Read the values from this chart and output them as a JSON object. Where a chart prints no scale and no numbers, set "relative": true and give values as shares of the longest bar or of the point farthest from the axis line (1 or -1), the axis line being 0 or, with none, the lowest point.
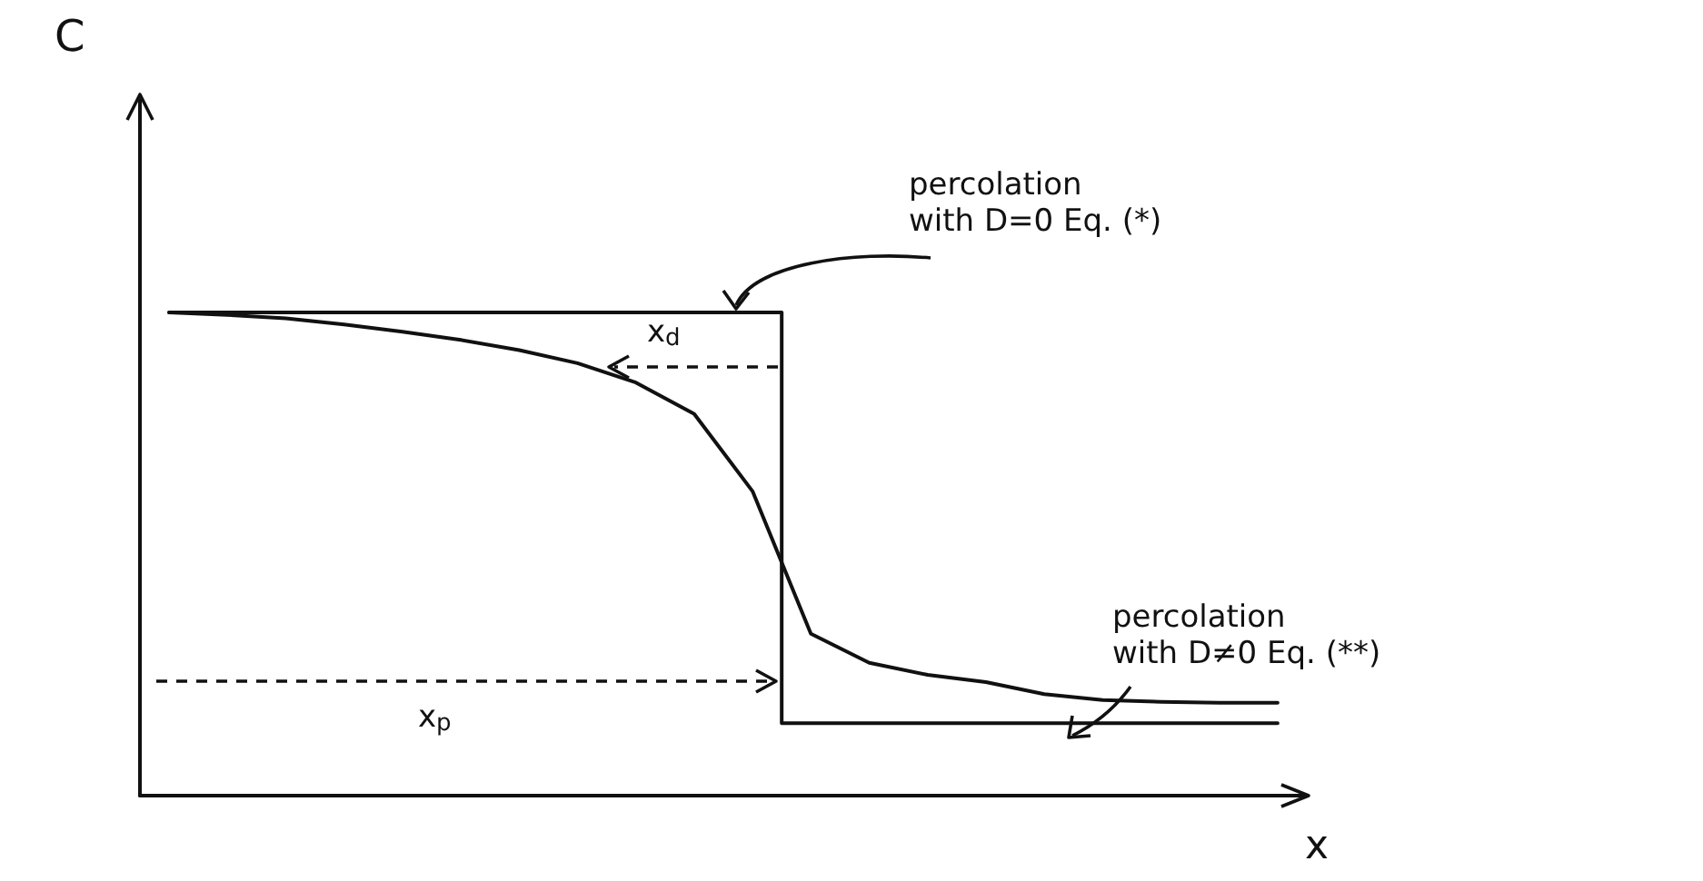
{
  "chart_data": {
    "type": "line",
    "relative": true,
    "marker": "none",
    "categories": [
      null,
      null,
      null,
      null,
      null,
      null,
      null,
      null,
      null,
      null,
      null,
      null,
      null,
      null,
      null,
      null,
      null,
      null,
      null,
      null
    ],
    "annotations": [
      "percolation with D=0 Eq. (*)",
      "percolation with D≠0 Eq. (**)",
      "x$_{d}$",
      "x$_{p}$",
      "C",
      "x"
    ],
    "series": [
      {
        "type": "step",
        "color": "#111111",
        "values": [
          1,
          1,
          1,
          1,
          1,
          1,
          1,
          1,
          1,
          1,
          1,
          0.15,
          0.15,
          0.15,
          0.15,
          0.15,
          0.15,
          0.15,
          0.15,
          0.15
        ]
      },
      {
        "type": "line",
        "color": "#111111",
        "values": [
          1,
          0.995,
          0.988,
          0.975,
          0.96,
          0.943,
          0.922,
          0.895,
          0.855,
          0.79,
          0.63,
          0.335,
          0.275,
          0.25,
          0.235,
          0.21,
          0.198,
          0.194,
          0.192,
          0.192
        ]
      }
    ]
  }
}
